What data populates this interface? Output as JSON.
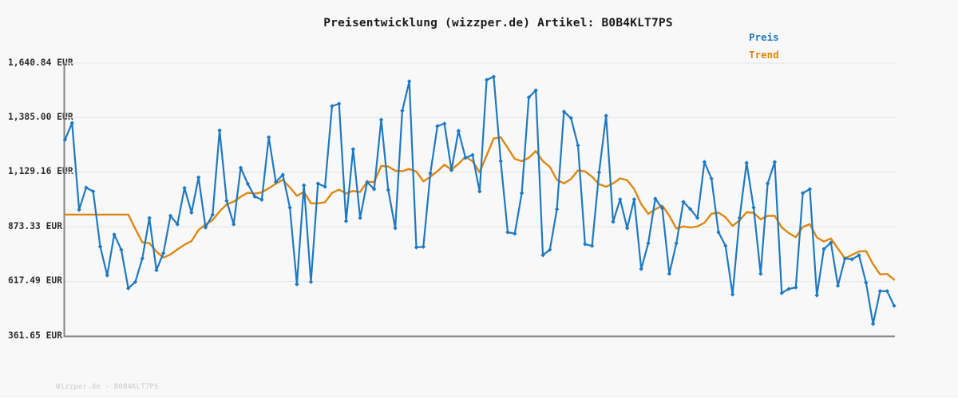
{
  "title": "Preisentwicklung (wizzper.de) Artikel: B0B4KLT7PS",
  "watermark": "Wizzper.de - B0B4KLT7PS",
  "legend": {
    "price_label": "Preis",
    "trend_label": "Trend"
  },
  "colors": {
    "price": "#1e79c0",
    "trend": "#dd8712",
    "grid": "#e7e7e8",
    "axis": "#828282",
    "background": "#f8f8f9",
    "title_text": "#1b1b1b",
    "tick_text": "#2e2e2e",
    "watermark_text": "#c9c9c9"
  },
  "chart_data": {
    "type": "line",
    "title": "Preisentwicklung (wizzper.de) Artikel: B0B4KLT7PS",
    "currency": "EUR",
    "xlabel": "",
    "ylabel": "",
    "x_axis": {
      "tick_labels_visible": false,
      "n_points": 119
    },
    "ylim": [
      361.65,
      1640.84
    ],
    "grid": "horizontal",
    "legend_position": "top-right",
    "y_ticks": [
      {
        "label": "1,640.84 EUR",
        "value": 1640.84
      },
      {
        "label": "1,385.00 EUR",
        "value": 1385.0
      },
      {
        "label": "1,129.16 EUR",
        "value": 1129.16
      },
      {
        "label": "873.33 EUR",
        "value": 873.33
      },
      {
        "label": "617.49 EUR",
        "value": 617.49
      },
      {
        "label": "361.65 EUR",
        "value": 361.65
      }
    ],
    "series": [
      {
        "name": "Preis",
        "style": "line-with-diamond-markers",
        "values": [
          1282,
          1360,
          953,
          1057,
          1039,
          781,
          646,
          837,
          766,
          585,
          615,
          725,
          915,
          670,
          750,
          925,
          885,
          1055,
          940,
          1105,
          870,
          930,
          1325,
          995,
          885,
          1150,
          1075,
          1015,
          1000,
          1293,
          1083,
          1117,
          963,
          604,
          1068,
          615,
          1076,
          1061,
          1439,
          1450,
          900,
          1237,
          915,
          1083,
          1050,
          1375,
          1046,
          867,
          1417,
          1555,
          777,
          780,
          1124,
          1345,
          1357,
          1139,
          1323,
          1196,
          1210,
          1039,
          1562,
          1577,
          1181,
          848,
          841,
          1031,
          1480,
          1513,
          740,
          766,
          956,
          1413,
          1383,
          1255,
          792,
          784,
          1128,
          1394,
          897,
          1002,
          867,
          1002,
          676,
          796,
          1005,
          960,
          653,
          796,
          990,
          956,
          915,
          1177,
          1099,
          848,
          784,
          556,
          915,
          1173,
          963,
          653,
          1076,
          1177,
          563,
          582,
          589,
          1031,
          1050,
          552,
          769,
          799,
          597,
          725,
          721,
          740,
          612,
          418,
          572,
          572,
          503
        ]
      },
      {
        "name": "Trend",
        "style": "line",
        "derivation": "trailing 10-point moving average of Preis (flat backfill over first 9 points)",
        "values": [
          930.6,
          930.6,
          930.6,
          930.6,
          930.6,
          930.6,
          930.6,
          930.6,
          930.6,
          930.6,
          863.9,
          800.4,
          796.6,
          757.9,
          729.0,
          743.4,
          767.3,
          789.1,
          806.5,
          858.5,
          884.0,
          904.5,
          945.5,
          978.0,
          991.5,
          1014.0,
          1033.0,
          1029.0,
          1035.0,
          1053.8,
          1075.1,
          1093.8,
          1057.6,
          1018.5,
          1036.8,
          983.3,
          983.4,
          988.0,
          1031.9,
          1047.6,
          1029.3,
          1041.3,
          1036.5,
          1084.4,
          1082.6,
          1158.6,
          1155.6,
          1136.2,
          1134.0,
          1144.5,
          1132.2,
          1086.5,
          1107.4,
          1133.6,
          1164.3,
          1140.7,
          1168.4,
          1201.3,
          1180.6,
          1129.0,
          1207.5,
          1287.2,
          1292.9,
          1243.2,
          1191.6,
          1180.8,
          1196.5,
          1228.2,
          1181.2,
          1153.9,
          1093.3,
          1076.9,
          1097.1,
          1137.8,
          1132.9,
          1108.2,
          1073.0,
          1061.1,
          1076.8,
          1100.4,
          1091.5,
          1050.4,
          979.7,
          933.8,
          955.1,
          972.7,
          925.2,
          865.4,
          874.7,
          870.1,
          874.9,
          892.4,
          934.7,
          939.9,
          917.8,
          877.4,
          903.6,
          941.3,
          938.6,
          908.3,
          924.4,
          924.4,
          870.8,
          844.2,
          824.7,
          872.2,
          885.7,
          823.6,
          804.2,
          818.8,
          770.9,
          725.7,
          741.5,
          757.3,
          759.6,
          698.3,
          650.5,
          652.5,
          625.9
        ]
      }
    ]
  }
}
